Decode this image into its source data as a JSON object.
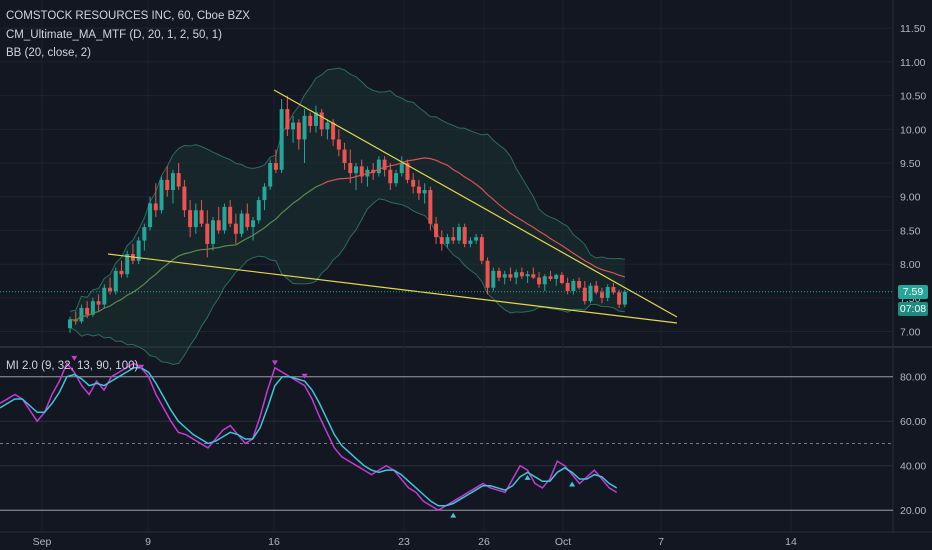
{
  "legend": {
    "symbol": "COMSTOCK RESOURCES INC, 60, Cboe BZX",
    "ma": "CM_Ultimate_MA_MTF (D, 20, 1, 2, 50, 1)",
    "bb": "BB (20, close, 2)",
    "osc": "MI 2.0 (9, 32, 13, 90, 100)"
  },
  "price_tags": {
    "last": "7.59",
    "timer": "07:08"
  },
  "colors": {
    "background": "#131722",
    "up": "#26a69a",
    "down": "#ef5350",
    "trendline": "#e4d84c",
    "ma": "#d9534f",
    "bb_line": "#2d6b5f",
    "osc_fast": "#c23bd4",
    "osc_slow": "#3ec6d8"
  },
  "chart_data": [
    {
      "type": "candlestick",
      "title": "COMSTOCK RESOURCES INC, 60, Cboe BZX",
      "xlabels": [
        "Sep",
        "9",
        "16",
        "23",
        "26",
        "Oct",
        "7",
        "14"
      ],
      "y_ticks": [
        "7.00",
        "7.50",
        "8.00",
        "8.50",
        "9.00",
        "9.50",
        "10.00",
        "10.50",
        "11.00",
        "11.50"
      ],
      "ylim": [
        6.8,
        11.8
      ],
      "last_price": 7.59,
      "ohlc": [
        [
          7.05,
          7.22,
          6.98,
          7.18
        ],
        [
          7.18,
          7.3,
          7.1,
          7.15
        ],
        [
          7.15,
          7.4,
          7.12,
          7.35
        ],
        [
          7.35,
          7.45,
          7.2,
          7.25
        ],
        [
          7.25,
          7.5,
          7.22,
          7.45
        ],
        [
          7.45,
          7.55,
          7.3,
          7.4
        ],
        [
          7.4,
          7.7,
          7.35,
          7.65
        ],
        [
          7.65,
          7.8,
          7.55,
          7.6
        ],
        [
          7.6,
          7.95,
          7.55,
          7.9
        ],
        [
          7.9,
          8.05,
          7.8,
          7.85
        ],
        [
          7.85,
          8.2,
          7.8,
          8.15
        ],
        [
          8.15,
          8.3,
          8.0,
          8.05
        ],
        [
          8.05,
          8.4,
          8.0,
          8.35
        ],
        [
          8.35,
          8.6,
          8.2,
          8.55
        ],
        [
          8.55,
          9.0,
          8.5,
          8.9
        ],
        [
          8.9,
          9.2,
          8.7,
          8.8
        ],
        [
          8.8,
          9.3,
          8.75,
          9.25
        ],
        [
          9.25,
          9.45,
          9.0,
          9.1
        ],
        [
          9.1,
          9.4,
          8.9,
          9.35
        ],
        [
          9.35,
          9.5,
          9.1,
          9.15
        ],
        [
          9.15,
          9.25,
          8.7,
          8.8
        ],
        [
          8.8,
          8.95,
          8.4,
          8.55
        ],
        [
          8.55,
          8.9,
          8.45,
          8.8
        ],
        [
          8.8,
          8.95,
          8.55,
          8.6
        ],
        [
          8.6,
          8.8,
          8.1,
          8.3
        ],
        [
          8.3,
          8.7,
          8.2,
          8.65
        ],
        [
          8.65,
          8.85,
          8.45,
          8.5
        ],
        [
          8.5,
          8.9,
          8.45,
          8.85
        ],
        [
          8.85,
          8.95,
          8.55,
          8.6
        ],
        [
          8.6,
          8.75,
          8.3,
          8.45
        ],
        [
          8.45,
          8.8,
          8.4,
          8.75
        ],
        [
          8.75,
          8.9,
          8.5,
          8.55
        ],
        [
          8.55,
          8.7,
          8.35,
          8.65
        ],
        [
          8.65,
          9.0,
          8.6,
          8.95
        ],
        [
          8.95,
          9.2,
          8.8,
          9.15
        ],
        [
          9.15,
          9.55,
          9.1,
          9.5
        ],
        [
          9.5,
          9.7,
          9.35,
          9.4
        ],
        [
          9.4,
          10.45,
          9.35,
          10.3
        ],
        [
          10.3,
          10.5,
          9.9,
          10.0
        ],
        [
          10.0,
          10.2,
          9.8,
          10.1
        ],
        [
          10.1,
          10.15,
          9.7,
          9.85
        ],
        [
          9.85,
          10.3,
          9.5,
          10.2
        ],
        [
          10.2,
          10.25,
          9.95,
          10.05
        ],
        [
          10.05,
          10.35,
          9.95,
          10.25
        ],
        [
          10.25,
          10.3,
          9.9,
          10.0
        ],
        [
          10.0,
          10.15,
          9.85,
          10.1
        ],
        [
          10.1,
          10.15,
          9.75,
          9.85
        ],
        [
          9.85,
          10.0,
          9.6,
          9.7
        ],
        [
          9.7,
          9.8,
          9.4,
          9.5
        ],
        [
          9.5,
          9.7,
          9.2,
          9.35
        ],
        [
          9.35,
          9.5,
          9.1,
          9.45
        ],
        [
          9.45,
          9.55,
          9.2,
          9.3
        ],
        [
          9.3,
          9.45,
          9.15,
          9.4
        ],
        [
          9.4,
          9.5,
          9.25,
          9.35
        ],
        [
          9.35,
          9.6,
          9.3,
          9.55
        ],
        [
          9.55,
          9.6,
          9.3,
          9.4
        ],
        [
          9.4,
          9.5,
          9.1,
          9.2
        ],
        [
          9.2,
          9.4,
          9.15,
          9.35
        ],
        [
          9.35,
          9.6,
          9.3,
          9.5
        ],
        [
          9.5,
          9.55,
          9.2,
          9.25
        ],
        [
          9.25,
          9.35,
          9.05,
          9.15
        ],
        [
          9.15,
          9.25,
          8.95,
          9.05
        ],
        [
          9.05,
          9.2,
          8.9,
          9.1
        ],
        [
          9.1,
          9.15,
          8.5,
          8.6
        ],
        [
          8.6,
          8.7,
          8.3,
          8.4
        ],
        [
          8.4,
          8.5,
          8.2,
          8.3
        ],
        [
          8.3,
          8.45,
          8.25,
          8.4
        ],
        [
          8.4,
          8.55,
          8.3,
          8.35
        ],
        [
          8.35,
          8.6,
          8.3,
          8.55
        ],
        [
          8.55,
          8.6,
          8.25,
          8.3
        ],
        [
          8.3,
          8.4,
          8.25,
          8.35
        ],
        [
          8.35,
          8.45,
          8.3,
          8.4
        ],
        [
          8.4,
          8.45,
          8.0,
          8.05
        ],
        [
          8.05,
          8.1,
          7.55,
          7.65
        ],
        [
          7.65,
          7.95,
          7.6,
          7.9
        ],
        [
          7.9,
          7.95,
          7.75,
          7.8
        ],
        [
          7.8,
          7.9,
          7.7,
          7.85
        ],
        [
          7.85,
          7.95,
          7.75,
          7.8
        ],
        [
          7.8,
          7.92,
          7.7,
          7.88
        ],
        [
          7.88,
          7.95,
          7.78,
          7.82
        ],
        [
          7.82,
          7.9,
          7.72,
          7.85
        ],
        [
          7.85,
          7.95,
          7.78,
          7.8
        ],
        [
          7.8,
          7.88,
          7.65,
          7.7
        ],
        [
          7.7,
          7.85,
          7.6,
          7.82
        ],
        [
          7.82,
          7.9,
          7.75,
          7.78
        ],
        [
          7.78,
          7.86,
          7.68,
          7.84
        ],
        [
          7.84,
          7.88,
          7.7,
          7.72
        ],
        [
          7.72,
          7.8,
          7.55,
          7.6
        ],
        [
          7.6,
          7.78,
          7.55,
          7.75
        ],
        [
          7.75,
          7.8,
          7.62,
          7.65
        ],
        [
          7.65,
          7.75,
          7.4,
          7.45
        ],
        [
          7.45,
          7.72,
          7.42,
          7.68
        ],
        [
          7.68,
          7.75,
          7.55,
          7.58
        ],
        [
          7.58,
          7.65,
          7.42,
          7.5
        ],
        [
          7.5,
          7.7,
          7.45,
          7.66
        ],
        [
          7.66,
          7.72,
          7.55,
          7.58
        ],
        [
          7.58,
          7.62,
          7.35,
          7.4
        ],
        [
          7.4,
          7.62,
          7.36,
          7.59
        ]
      ]
    },
    {
      "type": "line",
      "title": "MI 2.0 (9, 32, 13, 90, 100)",
      "y_ticks": [
        "20.00",
        "40.00",
        "60.00",
        "80.00"
      ],
      "ylim": [
        12,
        92
      ],
      "series": [
        {
          "values": [
            68,
            70,
            72,
            70,
            65,
            60,
            64,
            72,
            78,
            86,
            82,
            76,
            72,
            78,
            74,
            80,
            82,
            84,
            86,
            84,
            80,
            72,
            66,
            60,
            55,
            54,
            52,
            50,
            48,
            52,
            56,
            58,
            54,
            50,
            52,
            62,
            74,
            84,
            82,
            80,
            78,
            76,
            70,
            62,
            55,
            48,
            44,
            42,
            40,
            38,
            36,
            38,
            40,
            38,
            34,
            30,
            28,
            24,
            22,
            20,
            22,
            24,
            26,
            28,
            30,
            32,
            30,
            29,
            28,
            34,
            40,
            38,
            32,
            30,
            34,
            42,
            40,
            36,
            32,
            35,
            38,
            34,
            30,
            28
          ]
        },
        {
          "values": [
            66,
            68,
            70,
            70,
            67,
            64,
            64,
            68,
            73,
            80,
            81,
            79,
            76,
            77,
            76,
            78,
            80,
            82,
            84,
            84,
            82,
            77,
            71,
            65,
            60,
            57,
            54,
            52,
            50,
            51,
            53,
            55,
            54,
            52,
            52,
            57,
            66,
            76,
            80,
            80,
            79,
            78,
            74,
            68,
            61,
            54,
            49,
            46,
            43,
            40,
            38,
            37,
            38,
            38,
            36,
            33,
            30,
            27,
            24,
            22,
            22,
            23,
            25,
            27,
            29,
            31,
            31,
            30,
            29,
            31,
            35,
            37,
            35,
            33,
            33,
            37,
            39,
            37,
            34,
            34,
            36,
            35,
            32,
            30
          ]
        }
      ]
    }
  ]
}
